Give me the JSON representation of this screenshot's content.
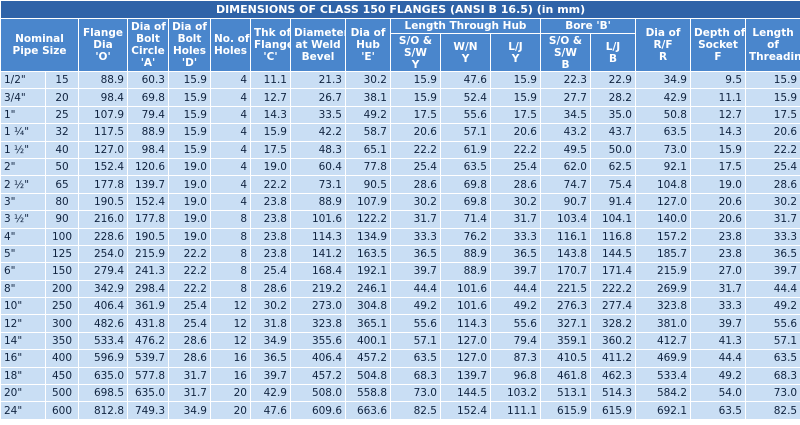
{
  "title": "DIMENSIONS OF CLASS 150 FLANGES (ANSI B 16.5) (in mm)",
  "header_top": [
    {
      "lines": [
        "Nominal",
        "Pipe Size"
      ],
      "colspan": 2,
      "rowspan": 2
    },
    {
      "lines": [
        "Flange",
        "Dia",
        "'O'"
      ],
      "colspan": 1,
      "rowspan": 2
    },
    {
      "lines": [
        "Dia of",
        "Bolt",
        "Circle",
        "'A'"
      ],
      "colspan": 1,
      "rowspan": 2
    },
    {
      "lines": [
        "Dia of",
        "Bolt",
        "Holes",
        "'D'"
      ],
      "colspan": 1,
      "rowspan": 2
    },
    {
      "lines": [
        "No. of",
        "Holes"
      ],
      "colspan": 1,
      "rowspan": 2
    },
    {
      "lines": [
        "Thk of",
        "Flange",
        "'C'"
      ],
      "colspan": 1,
      "rowspan": 2
    },
    {
      "lines": [
        "Diameter",
        "at Weld",
        "Bevel"
      ],
      "colspan": 1,
      "rowspan": 2
    },
    {
      "lines": [
        "Dia of",
        "Hub",
        "'E'"
      ],
      "colspan": 1,
      "rowspan": 2
    },
    {
      "lines": [
        "Length Through Hub"
      ],
      "colspan": 3,
      "rowspan": 1
    },
    {
      "lines": [
        "Bore 'B'"
      ],
      "colspan": 2,
      "rowspan": 1
    },
    {
      "lines": [
        "Dia of",
        "R/F",
        "R"
      ],
      "colspan": 1,
      "rowspan": 2
    },
    {
      "lines": [
        "Depth of",
        "Socket",
        "F"
      ],
      "colspan": 1,
      "rowspan": 2
    },
    {
      "lines": [
        "Length",
        "of",
        "Threading"
      ],
      "colspan": 1,
      "rowspan": 2
    }
  ],
  "header_sub": [
    [
      "S/O &",
      "S/W",
      "Y"
    ],
    [
      "W/N",
      "Y"
    ],
    [
      "L/J",
      "Y"
    ],
    [
      "S/O &",
      "S/W",
      "B"
    ],
    [
      "L/J",
      "B"
    ]
  ],
  "rows": [
    [
      "1/2\"",
      "15",
      "88.9",
      "60.3",
      "15.9",
      "4",
      "11.1",
      "21.3",
      "30.2",
      "15.9",
      "47.6",
      "15.9",
      "22.3",
      "22.9",
      "34.9",
      "9.5",
      "15.9"
    ],
    [
      "3/4\"",
      "20",
      "98.4",
      "69.8",
      "15.9",
      "4",
      "12.7",
      "26.7",
      "38.1",
      "15.9",
      "52.4",
      "15.9",
      "27.7",
      "28.2",
      "42.9",
      "11.1",
      "15.9"
    ],
    [
      "1\"",
      "25",
      "107.9",
      "79.4",
      "15.9",
      "4",
      "14.3",
      "33.5",
      "49.2",
      "17.5",
      "55.6",
      "17.5",
      "34.5",
      "35.0",
      "50.8",
      "12.7",
      "17.5"
    ],
    [
      "1 ¼\"",
      "32",
      "117.5",
      "88.9",
      "15.9",
      "4",
      "15.9",
      "42.2",
      "58.7",
      "20.6",
      "57.1",
      "20.6",
      "43.2",
      "43.7",
      "63.5",
      "14.3",
      "20.6"
    ],
    [
      "1 ½\"",
      "40",
      "127.0",
      "98.4",
      "15.9",
      "4",
      "17.5",
      "48.3",
      "65.1",
      "22.2",
      "61.9",
      "22.2",
      "49.5",
      "50.0",
      "73.0",
      "15.9",
      "22.2"
    ],
    [
      "2\"",
      "50",
      "152.4",
      "120.6",
      "19.0",
      "4",
      "19.0",
      "60.4",
      "77.8",
      "25.4",
      "63.5",
      "25.4",
      "62.0",
      "62.5",
      "92.1",
      "17.5",
      "25.4"
    ],
    [
      "2 ½\"",
      "65",
      "177.8",
      "139.7",
      "19.0",
      "4",
      "22.2",
      "73.1",
      "90.5",
      "28.6",
      "69.8",
      "28.6",
      "74.7",
      "75.4",
      "104.8",
      "19.0",
      "28.6"
    ],
    [
      "3\"",
      "80",
      "190.5",
      "152.4",
      "19.0",
      "4",
      "23.8",
      "88.9",
      "107.9",
      "30.2",
      "69.8",
      "30.2",
      "90.7",
      "91.4",
      "127.0",
      "20.6",
      "30.2"
    ],
    [
      "3 ½\"",
      "90",
      "216.0",
      "177.8",
      "19.0",
      "8",
      "23.8",
      "101.6",
      "122.2",
      "31.7",
      "71.4",
      "31.7",
      "103.4",
      "104.1",
      "140.0",
      "20.6",
      "31.7"
    ],
    [
      "4\"",
      "100",
      "228.6",
      "190.5",
      "19.0",
      "8",
      "23.8",
      "114.3",
      "134.9",
      "33.3",
      "76.2",
      "33.3",
      "116.1",
      "116.8",
      "157.2",
      "23.8",
      "33.3"
    ],
    [
      "5\"",
      "125",
      "254.0",
      "215.9",
      "22.2",
      "8",
      "23.8",
      "141.2",
      "163.5",
      "36.5",
      "88.9",
      "36.5",
      "143.8",
      "144.5",
      "185.7",
      "23.8",
      "36.5"
    ],
    [
      "6\"",
      "150",
      "279.4",
      "241.3",
      "22.2",
      "8",
      "25.4",
      "168.4",
      "192.1",
      "39.7",
      "88.9",
      "39.7",
      "170.7",
      "171.4",
      "215.9",
      "27.0",
      "39.7"
    ],
    [
      "8\"",
      "200",
      "342.9",
      "298.4",
      "22.2",
      "8",
      "28.6",
      "219.2",
      "246.1",
      "44.4",
      "101.6",
      "44.4",
      "221.5",
      "222.2",
      "269.9",
      "31.7",
      "44.4"
    ],
    [
      "10\"",
      "250",
      "406.4",
      "361.9",
      "25.4",
      "12",
      "30.2",
      "273.0",
      "304.8",
      "49.2",
      "101.6",
      "49.2",
      "276.3",
      "277.4",
      "323.8",
      "33.3",
      "49.2"
    ],
    [
      "12\"",
      "300",
      "482.6",
      "431.8",
      "25.4",
      "12",
      "31.8",
      "323.8",
      "365.1",
      "55.6",
      "114.3",
      "55.6",
      "327.1",
      "328.2",
      "381.0",
      "39.7",
      "55.6"
    ],
    [
      "14\"",
      "350",
      "533.4",
      "476.2",
      "28.6",
      "12",
      "34.9",
      "355.6",
      "400.1",
      "57.1",
      "127.0",
      "79.4",
      "359.1",
      "360.2",
      "412.7",
      "41.3",
      "57.1"
    ],
    [
      "16\"",
      "400",
      "596.9",
      "539.7",
      "28.6",
      "16",
      "36.5",
      "406.4",
      "457.2",
      "63.5",
      "127.0",
      "87.3",
      "410.5",
      "411.2",
      "469.9",
      "44.4",
      "63.5"
    ],
    [
      "18\"",
      "450",
      "635.0",
      "577.8",
      "31.7",
      "16",
      "39.7",
      "457.2",
      "504.8",
      "68.3",
      "139.7",
      "96.8",
      "461.8",
      "462.3",
      "533.4",
      "49.2",
      "68.3"
    ],
    [
      "20\"",
      "500",
      "698.5",
      "635.0",
      "31.7",
      "20",
      "42.9",
      "508.0",
      "558.8",
      "73.0",
      "144.5",
      "103.2",
      "513.1",
      "514.3",
      "584.2",
      "54.0",
      "73.0"
    ],
    [
      "24\"",
      "600",
      "812.8",
      "749.3",
      "34.9",
      "20",
      "47.6",
      "609.6",
      "663.6",
      "82.5",
      "152.4",
      "111.1",
      "615.9",
      "615.9",
      "692.1",
      "63.5",
      "82.5"
    ]
  ]
}
